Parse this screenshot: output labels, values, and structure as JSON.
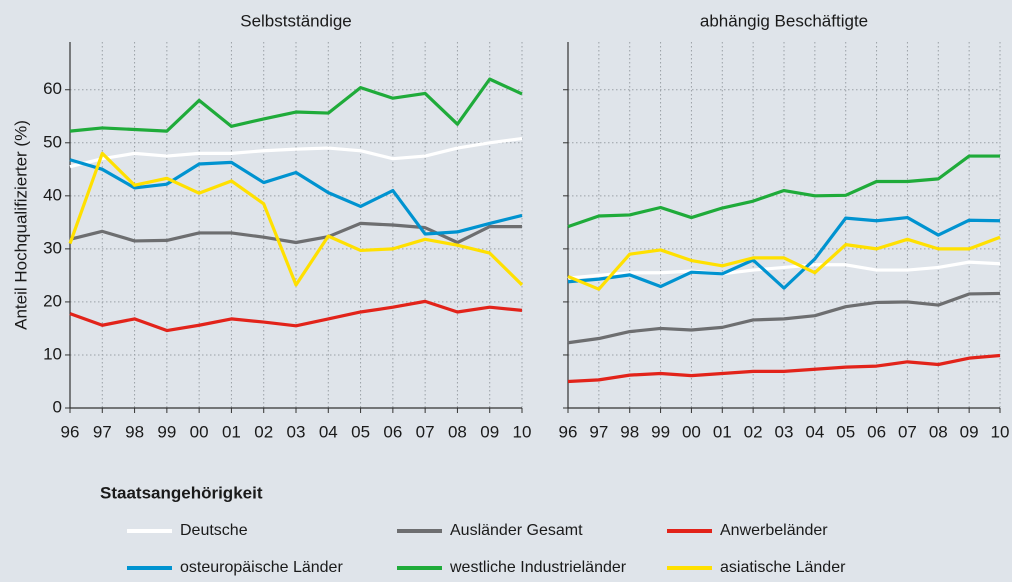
{
  "chart_data": [
    {
      "type": "line",
      "title": "Selbstständige",
      "ylabel": "Anteil Hochqualifizierter (%)",
      "categories": [
        "96",
        "97",
        "98",
        "99",
        "00",
        "01",
        "02",
        "03",
        "04",
        "05",
        "06",
        "07",
        "08",
        "09",
        "10"
      ],
      "ylim": [
        0,
        69
      ],
      "yticks": [
        0,
        10,
        20,
        30,
        40,
        50,
        60
      ],
      "show_ytick_labels": true,
      "grid": true,
      "series": [
        {
          "name": "Deutsche",
          "color": "#ffffff",
          "values": [
            45.5,
            47,
            48,
            47.5,
            48,
            48,
            48.5,
            48.8,
            49,
            48.5,
            47,
            47.5,
            49,
            50,
            50.8
          ]
        },
        {
          "name": "Ausländer Gesamt",
          "color": "#6d6e70",
          "values": [
            31.8,
            33.3,
            31.5,
            31.6,
            33,
            33,
            32.2,
            31.2,
            32.3,
            34.8,
            34.5,
            34,
            31.2,
            34.2,
            34.2
          ]
        },
        {
          "name": "Anwerbeländer",
          "color": "#e2231a",
          "values": [
            17.8,
            15.6,
            16.8,
            14.6,
            15.6,
            16.8,
            16.2,
            15.5,
            16.8,
            18.1,
            19,
            20.1,
            18.1,
            19,
            18.4
          ]
        },
        {
          "name": "osteuropäische Länder",
          "color": "#0093d0",
          "values": [
            46.8,
            45,
            41.5,
            42.2,
            46,
            46.3,
            42.5,
            44.4,
            40.6,
            38,
            41,
            32.8,
            33.2,
            34.8,
            36.3
          ]
        },
        {
          "name": "westliche Industrieländer",
          "color": "#1fab3a",
          "values": [
            52.2,
            52.8,
            52.5,
            52.2,
            58,
            53.1,
            54.5,
            55.8,
            55.6,
            60.4,
            58.4,
            59.3,
            53.5,
            62,
            59.2
          ]
        },
        {
          "name": "asiatische Länder",
          "color": "#ffe000",
          "values": [
            31,
            48,
            42,
            43.3,
            40.5,
            42.8,
            38.5,
            23.2,
            32.4,
            29.7,
            30,
            31.8,
            30.7,
            29.2,
            23.2
          ]
        }
      ]
    },
    {
      "type": "line",
      "title": "abhängig Beschäftigte",
      "categories": [
        "96",
        "97",
        "98",
        "99",
        "00",
        "01",
        "02",
        "03",
        "04",
        "05",
        "06",
        "07",
        "08",
        "09",
        "10"
      ],
      "ylim": [
        0,
        69
      ],
      "yticks": [
        0,
        10,
        20,
        30,
        40,
        50,
        60
      ],
      "show_ytick_labels": false,
      "grid": true,
      "series": [
        {
          "name": "Deutsche",
          "color": "#ffffff",
          "values": [
            24.5,
            25,
            25.5,
            25.5,
            25.8,
            25.3,
            26,
            26.5,
            27,
            27,
            26,
            26,
            26.5,
            27.5,
            27.2
          ]
        },
        {
          "name": "Ausländer Gesamt",
          "color": "#6d6e70",
          "values": [
            12.3,
            13.1,
            14.4,
            15,
            14.7,
            15.2,
            16.6,
            16.8,
            17.4,
            19.1,
            19.9,
            20,
            19.4,
            21.5,
            21.6
          ]
        },
        {
          "name": "Anwerbeländer",
          "color": "#e2231a",
          "values": [
            5,
            5.3,
            6.2,
            6.5,
            6.1,
            6.5,
            6.9,
            6.9,
            7.3,
            7.7,
            7.9,
            8.7,
            8.2,
            9.4,
            9.9
          ]
        },
        {
          "name": "osteuropäische Länder",
          "color": "#0093d0",
          "values": [
            23.8,
            24.3,
            25.1,
            22.9,
            25.6,
            25.3,
            27.9,
            22.6,
            28.1,
            35.8,
            35.3,
            35.9,
            32.6,
            35.4,
            35.3
          ]
        },
        {
          "name": "westliche Industrieländer",
          "color": "#1fab3a",
          "values": [
            34.2,
            36.2,
            36.4,
            37.8,
            35.9,
            37.7,
            39,
            41,
            40,
            40.1,
            42.7,
            42.7,
            43.2,
            47.5,
            47.5
          ]
        },
        {
          "name": "asiatische Länder",
          "color": "#ffe000",
          "values": [
            24.8,
            22.4,
            29,
            29.8,
            27.8,
            26.8,
            28.3,
            28.3,
            25.5,
            30.8,
            30,
            31.8,
            30,
            30,
            32.2
          ]
        }
      ]
    }
  ],
  "legend": {
    "title": "Staatsangehörigkeit"
  }
}
